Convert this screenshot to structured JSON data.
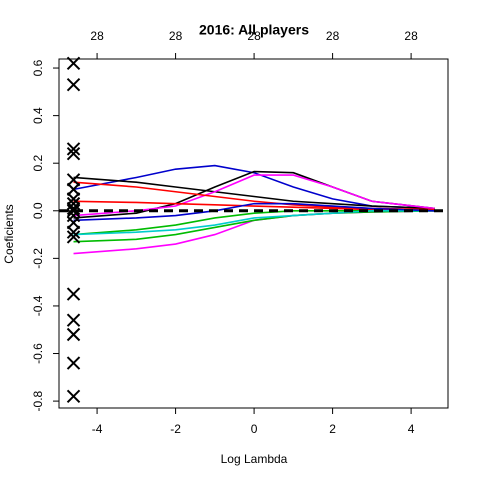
{
  "chart_data": {
    "type": "line",
    "title": "2016: All players",
    "xlabel": "Log Lambda",
    "ylabel": "Coeficients",
    "xlim": [
      -4.97,
      4.94
    ],
    "ylim": [
      -0.829,
      0.638
    ],
    "xticks": [
      -4,
      -2,
      0,
      2,
      4
    ],
    "x2ticks": [
      {
        "value": -4,
        "label": "28"
      },
      {
        "value": -2,
        "label": "28"
      },
      {
        "value": 0,
        "label": "28"
      },
      {
        "value": 2,
        "label": "28"
      },
      {
        "value": 4,
        "label": "28"
      }
    ],
    "yticks": [
      0.6,
      0.4,
      0.2,
      {
        "value": 0,
        "label": "0.0"
      },
      -0.2,
      -0.4,
      -0.6,
      -0.8
    ],
    "hline": 0,
    "x": [
      -4.6,
      -3,
      -2,
      -1,
      0,
      1,
      2,
      3,
      4.6
    ],
    "series": [
      {
        "color": "#0000cc",
        "values": [
          0.09,
          0.14,
          0.175,
          0.19,
          0.16,
          0.1,
          0.05,
          0.02,
          0.01
        ]
      },
      {
        "color": "#000000",
        "values": [
          0.14,
          0.12,
          0.1,
          0.08,
          0.06,
          0.04,
          0.03,
          0.02,
          0.01
        ]
      },
      {
        "color": "#000000",
        "values": [
          -0.03,
          -0.01,
          0.03,
          0.1,
          0.165,
          0.16,
          0.1,
          0.04,
          0.01
        ]
      },
      {
        "color": "#ff00ff",
        "values": [
          -0.02,
          0,
          0.02,
          0.08,
          0.15,
          0.15,
          0.1,
          0.04,
          0.01
        ]
      },
      {
        "color": "#ff0000",
        "values": [
          0.12,
          0.1,
          0.08,
          0.06,
          0.04,
          0.025,
          0.015,
          0.01,
          0.005
        ]
      },
      {
        "color": "#ff0000",
        "values": [
          0.04,
          0.035,
          0.03,
          0.025,
          0.02,
          0.015,
          0.01,
          0.005,
          0
        ]
      },
      {
        "color": "#ff00ff",
        "values": [
          -0.18,
          -0.16,
          -0.14,
          -0.1,
          -0.04,
          -0.02,
          -0.01,
          -0.005,
          0
        ]
      },
      {
        "color": "#00bb00",
        "values": [
          -0.13,
          -0.12,
          -0.1,
          -0.07,
          -0.04,
          -0.02,
          -0.01,
          -0.005,
          0
        ]
      },
      {
        "color": "#00bb00",
        "values": [
          -0.1,
          -0.08,
          -0.06,
          -0.03,
          -0.01,
          0,
          0,
          0,
          0
        ]
      },
      {
        "color": "#00cccc",
        "values": [
          -0.1,
          -0.09,
          -0.08,
          -0.06,
          -0.03,
          -0.02,
          -0.01,
          0,
          0
        ]
      },
      {
        "color": "#0000cc",
        "values": [
          -0.04,
          -0.03,
          -0.02,
          0,
          0.03,
          0.03,
          0.02,
          0.01,
          0
        ]
      }
    ],
    "markers": {
      "x": [
        -4.6,
        -4.6,
        -4.6,
        -4.6,
        -4.6,
        -4.6,
        -4.6,
        -4.6,
        -4.6,
        -4.6,
        -4.6,
        -4.6,
        -4.6,
        -4.6,
        -4.6,
        -4.6,
        -4.6,
        -4.6,
        -4.6
      ],
      "y": [
        0.62,
        0.53,
        0.26,
        0.24,
        0.13,
        0.09,
        0.05,
        0.03,
        0.01,
        0,
        -0.02,
        -0.05,
        -0.09,
        -0.11,
        -0.35,
        -0.46,
        -0.52,
        -0.64,
        -0.78
      ]
    }
  }
}
